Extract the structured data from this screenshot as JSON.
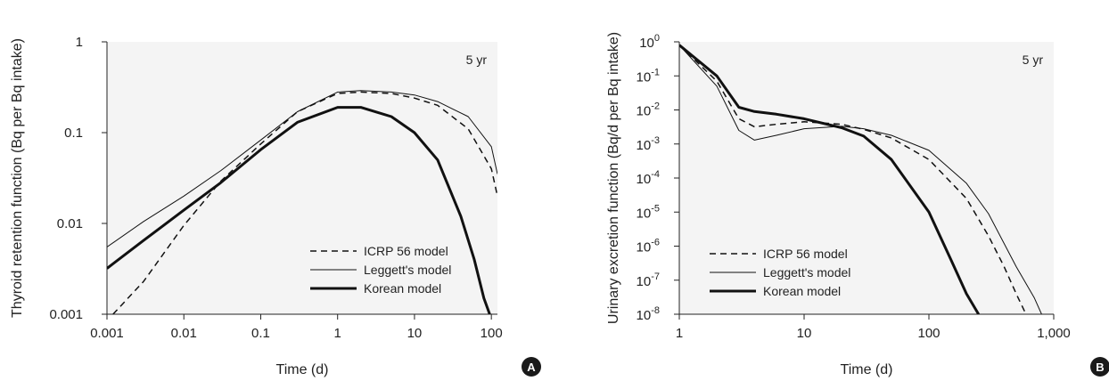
{
  "chart_data": [
    {
      "type": "line",
      "panel_label": "A",
      "annotation": "5 yr",
      "xlabel": "Time (d)",
      "ylabel": "Thyroid retention function (Bq per Bq intake)",
      "xscale": "log",
      "yscale": "log",
      "xlim": [
        0.001,
        120
      ],
      "ylim": [
        0.001,
        1
      ],
      "xticks": [
        0.001,
        0.01,
        0.1,
        1,
        10,
        100
      ],
      "xtick_labels": [
        "0.001",
        "0.01",
        "0.1",
        "1",
        "10",
        "100"
      ],
      "yticks": [
        0.001,
        0.01,
        0.1,
        1
      ],
      "ytick_labels": [
        "0.001",
        "0.01",
        "0.1",
        "1"
      ],
      "legend_position": "bottom-right",
      "series": [
        {
          "name": "ICRP 56 model",
          "style": "dashed",
          "width": 1.5,
          "x": [
            0.0012,
            0.003,
            0.01,
            0.03,
            0.1,
            0.3,
            1,
            2,
            5,
            10,
            20,
            50,
            100,
            120
          ],
          "y": [
            0.001,
            0.0023,
            0.0095,
            0.029,
            0.075,
            0.17,
            0.27,
            0.28,
            0.27,
            0.24,
            0.2,
            0.11,
            0.04,
            0.02
          ]
        },
        {
          "name": "Leggett's model",
          "style": "solid",
          "width": 1,
          "x": [
            0.001,
            0.003,
            0.01,
            0.03,
            0.1,
            0.3,
            1,
            2,
            5,
            10,
            20,
            50,
            100,
            120
          ],
          "y": [
            0.0055,
            0.0105,
            0.02,
            0.038,
            0.083,
            0.17,
            0.28,
            0.29,
            0.28,
            0.26,
            0.22,
            0.15,
            0.07,
            0.035
          ]
        },
        {
          "name": "Korean model",
          "style": "solid",
          "width": 3,
          "x": [
            0.001,
            0.003,
            0.01,
            0.03,
            0.1,
            0.3,
            1,
            2,
            5,
            10,
            20,
            40,
            60,
            80,
            95
          ],
          "y": [
            0.0032,
            0.0065,
            0.014,
            0.028,
            0.065,
            0.13,
            0.19,
            0.19,
            0.15,
            0.1,
            0.05,
            0.012,
            0.004,
            0.0015,
            0.001
          ]
        }
      ]
    },
    {
      "type": "line",
      "panel_label": "B",
      "annotation": "5 yr",
      "xlabel": "Time (d)",
      "ylabel": "Urinary excretion function (Bq/d per Bq intake)",
      "xscale": "log",
      "yscale": "log",
      "xlim": [
        1,
        1000
      ],
      "ylim": [
        1e-08,
        1
      ],
      "xticks": [
        1,
        10,
        100,
        1000
      ],
      "xtick_labels": [
        "1",
        "10",
        "100",
        "1,000"
      ],
      "ytick_bases": [
        "10",
        "10",
        "10",
        "10",
        "10",
        "10",
        "10",
        "10",
        "10"
      ],
      "ytick_exps": [
        "0",
        "-1",
        "-2",
        "-3",
        "-4",
        "-5",
        "-6",
        "-7",
        "-8"
      ],
      "legend_position": "bottom-left",
      "series": [
        {
          "name": "ICRP 56 model",
          "style": "dashed",
          "width": 1.5,
          "x": [
            1,
            2,
            3,
            4,
            6,
            10,
            20,
            30,
            50,
            100,
            200,
            300,
            400,
            500,
            600
          ],
          "y": [
            0.8,
            0.07,
            0.0055,
            0.0032,
            0.0038,
            0.0045,
            0.0038,
            0.0027,
            0.0015,
            0.00035,
            2.5e-05,
            2e-06,
            2.5e-07,
            4e-08,
            1e-08
          ]
        },
        {
          "name": "Leggett's model",
          "style": "solid",
          "width": 1,
          "x": [
            1,
            2,
            3,
            4,
            6,
            10,
            20,
            30,
            50,
            100,
            200,
            300,
            500,
            700,
            800
          ],
          "y": [
            0.8,
            0.05,
            0.0025,
            0.0013,
            0.0018,
            0.0028,
            0.0033,
            0.0028,
            0.0018,
            0.00065,
            7e-05,
            9e-06,
            2.5e-07,
            3e-08,
            1e-08
          ]
        },
        {
          "name": "Korean model",
          "style": "solid",
          "width": 3,
          "x": [
            1,
            2,
            3,
            4,
            6,
            10,
            20,
            30,
            50,
            100,
            150,
            200,
            250
          ],
          "y": [
            0.8,
            0.1,
            0.012,
            0.009,
            0.0075,
            0.0055,
            0.003,
            0.0017,
            0.00035,
            1e-05,
            4e-07,
            4e-08,
            1e-08
          ]
        }
      ]
    }
  ]
}
